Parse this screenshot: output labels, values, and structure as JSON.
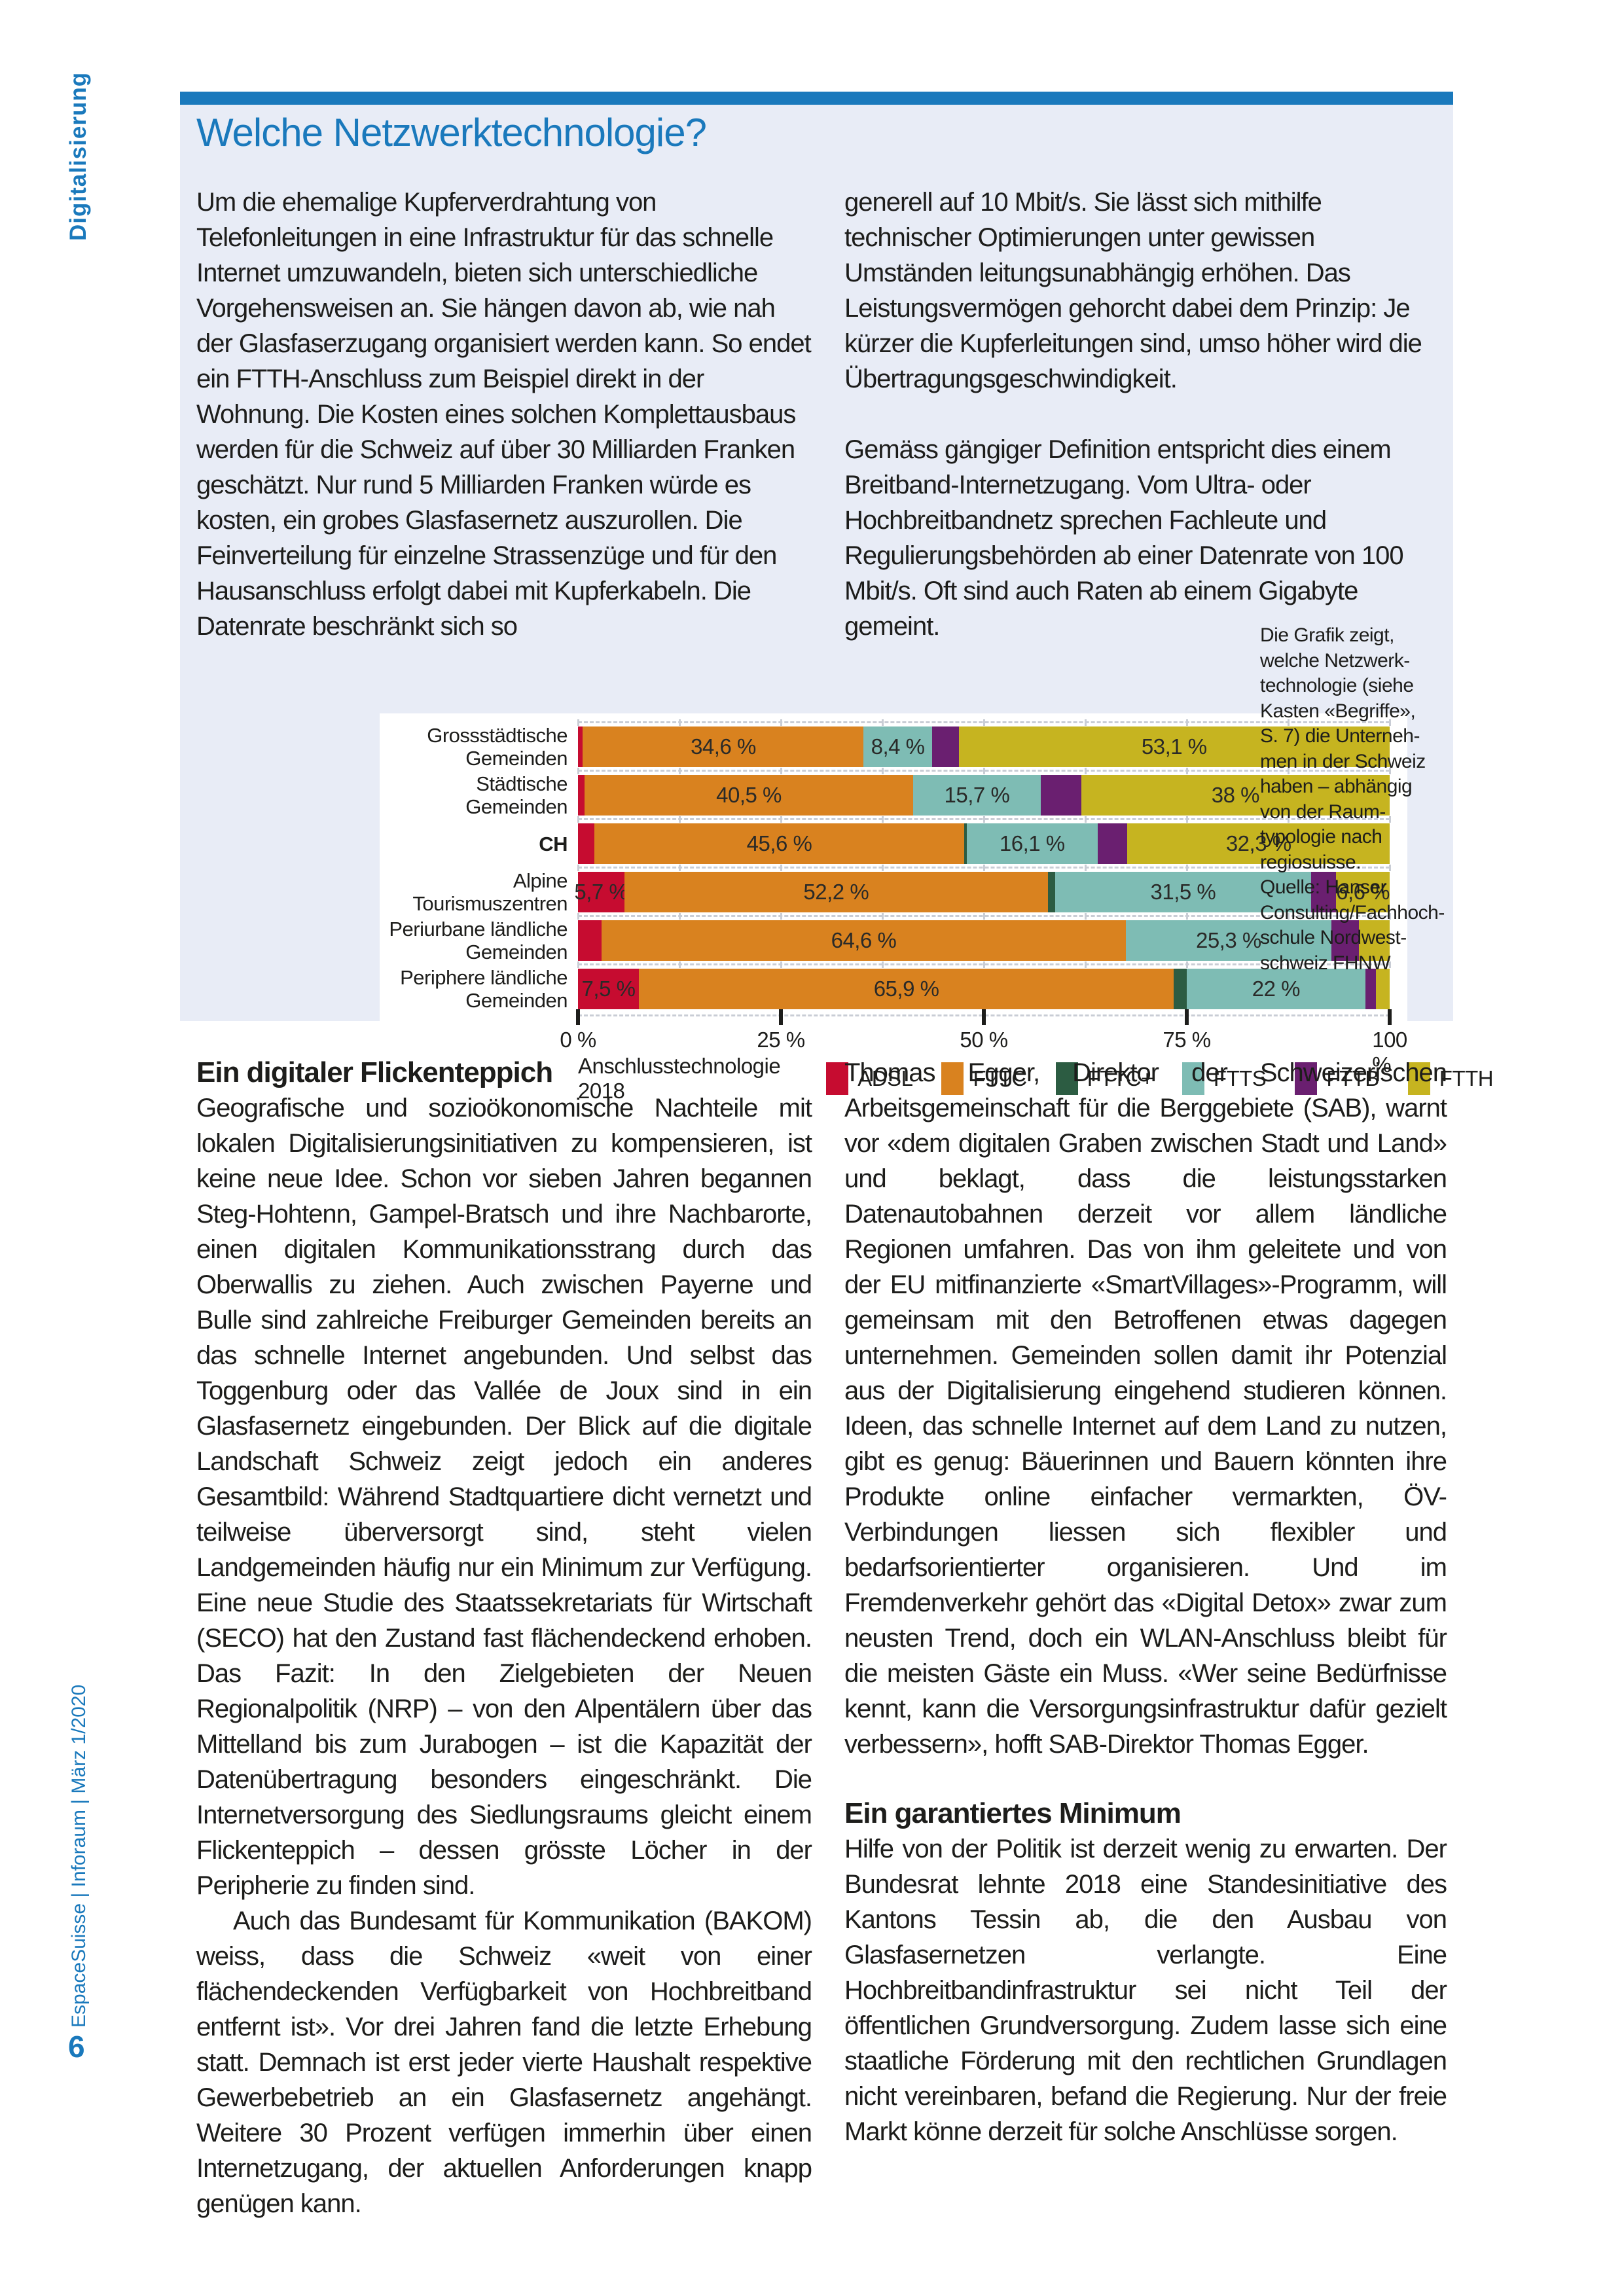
{
  "masthead": {
    "section_label": "Digitalisierung",
    "footer": "EspaceSuisse | Inforaum | März 1/2020",
    "page_number": "6"
  },
  "article": {
    "title": "Welche Netzwerktechnologie?",
    "intro_col1": "Um die ehemalige Kupferverdrahtung von Telefonleitungen in eine Infrastruktur für das schnelle Internet umzuwandeln, bieten sich unterschiedliche Vorgehensweisen an. Sie hängen davon ab, wie nah der Glasfaserzugang organisiert werden kann. So endet ein FTTH-Anschluss zum Beispiel direkt in der Wohnung. Die Kosten eines solchen Komplettausbaus werden für die Schweiz auf über 30 Milliarden Franken geschätzt. Nur rund 5 Milliarden Franken würde es kosten, ein grobes Glasfasernetz auszurollen. Die Feinverteilung für einzelne Strassenzüge und für den Hausanschluss erfolgt dabei mit Kupferkabeln. Die Datenrate beschränkt sich so",
    "intro_col2_p1": "generell auf 10 Mbit/s. Sie lässt sich mithilfe technischer Optimierungen unter gewissen Umständen leitungsunabhängig erhöhen. Das Leistungsvermögen gehorcht dabei dem Prinzip: Je kürzer die Kupferleitungen sind, umso höher wird die Übertragungsgeschwindigkeit.",
    "intro_col2_p2": "Gemäss gängiger Definition entspricht dies einem Breitband-Internetzugang. Vom Ultra- oder Hochbreitbandnetz sprechen Fachleute und Regulierungsbehörden ab einer Datenrate von 100 Mbit/s. Oft sind auch Raten ab einem Gigabyte gemeint.",
    "heading_left": "Ein digitaler Flickenteppich",
    "left_p1": "Geografische und sozioökonomische Nachteile mit lokalen Digitalisierungsinitiativen zu kompensieren, ist keine neue Idee. Schon vor sieben Jahren begannen Steg-Hohtenn, Gampel-Bratsch und ihre Nachbarorte, einen digitalen Kommunikationsstrang durch das Oberwallis zu ziehen. Auch zwischen Payerne und Bulle sind zahlreiche Freiburger Gemeinden bereits an das schnelle Internet angebunden. Und selbst das Toggenburg oder das Vallée de Joux sind in ein Glasfasernetz eingebunden. Der Blick auf die digitale Landschaft Schweiz zeigt jedoch ein anderes Gesamtbild: Während Stadtquartiere dicht vernetzt und teilweise überversorgt sind, steht vielen Landgemeinden häufig nur ein Minimum zur Verfügung. Eine neue Studie des Staatssekretariats für Wirtschaft (SECO) hat den Zustand fast flächendeckend erhoben. Das Fazit: In den Zielgebieten der Neuen Regionalpolitik (NRP) – von den Alpentälern über das Mittelland bis zum Jurabogen – ist die Kapazität der Datenübertragung besonders eingeschränkt. Die Internetversorgung des Siedlungsraums gleicht einem Flickenteppich – dessen grösste Löcher in der Peripherie zu finden sind.",
    "left_p2": "Auch das Bundesamt für Kommunikation (BAKOM) weiss, dass die Schweiz «weit von einer flächendeckenden Verfügbarkeit von Hochbreitband entfernt ist». Vor drei Jahren fand die letzte Erhebung statt. Demnach ist erst jeder vierte Haushalt respektive Gewerbebetrieb an ein Glasfasernetz angehängt. Weitere 30 Prozent verfügen immerhin über einen Internetzugang, der aktuellen Anforderungen knapp genügen kann.",
    "right_p1": "Thomas Egger, Direktor der Schweizerischen Arbeitsgemeinschaft für die Berggebiete (SAB), warnt vor «dem digitalen Graben zwischen Stadt und Land» und beklagt, dass die leistungsstarken Datenautobahnen derzeit vor allem ländliche Regionen umfahren. Das von ihm geleitete und von der EU mitfinanzierte «SmartVillages»-Programm, will gemeinsam mit den Betroffenen etwas dagegen unternehmen. Gemeinden sollen damit ihr Potenzial aus der Digitalisierung eingehend studieren können. Ideen, das schnelle Internet auf dem Land zu nutzen, gibt es genug: Bäuerinnen und Bauern könnten ihre Produkte online einfacher vermarkten, ÖV-Verbindungen liessen sich flexibler und bedarfsorientierter organisieren. Und im Fremdenverkehr gehört das «Digital Detox» zwar zum neusten Trend, doch ein WLAN-Anschluss bleibt für die meisten Gäste ein Muss. «Wer seine Bedürfnisse kennt, kann die Versorgungsinfrastruktur dafür gezielt verbessern», hofft SAB-Direktor Thomas Egger.",
    "heading_right": "Ein garantiertes Minimum",
    "right_p2": "Hilfe von der Politik ist derzeit wenig zu erwarten. Der Bundesrat lehnte 2018 eine Standesinitiative des Kantons Tessin ab, die den Ausbau von Glasfasernetzen verlangte. Eine Hochbreitbandinfrastruktur sei nicht Teil der öffentlichen Grundversorgung. Zudem lasse sich eine staatliche Förderung mit den rechtlichen Grundlagen nicht vereinbaren, befand die Regierung. Nur der freie Markt könne derzeit für solche Anschlüsse sorgen."
  },
  "chart_note": "Die Grafik zeigt,\nwelche Netzwerk-\ntechnologie (siehe\nKasten «Begriffe»,\nS. 7) die Unterneh-\nmen in der Schweiz\nhaben – abhängig\nvon der Raum-\ntypologie nach\nregiosuisse.\nQuelle: Hanser\nConsulting/Fachhoch-\nschule Nordwest-\nschweiz FHNW",
  "chart_data": {
    "type": "bar",
    "orientation": "horizontal-stacked",
    "legend_title": "Anschlusstechnologie 2018",
    "legend": [
      "ADSL",
      "FTTC",
      "FTTC+",
      "FTTS",
      "FTTB",
      "FTTH"
    ],
    "legend_position": "bottom",
    "grid": "dashed-horizontal",
    "xlim": [
      0,
      100
    ],
    "x_ticks": [
      "0 %",
      "25 %",
      "50 %",
      "75 %",
      "100 %"
    ],
    "x_tick_values": [
      0,
      25,
      50,
      75,
      100
    ],
    "colors": {
      "ADSL": "#c60c30",
      "FTTC": "#d9821f",
      "FTTC+": "#2c5c42",
      "FTTS": "#7ebcb4",
      "FTTB": "#6a1f70",
      "FTTH": "#c6b420"
    },
    "categories": [
      "Grossstädtische Gemeinden",
      "Städtische Gemeinden",
      "CH",
      "Alpine Tourismuszentren",
      "Periurbane ländliche Gemeinden",
      "Periphere ländliche Gemeinden"
    ],
    "rows": [
      {
        "label_lines": "Grossstädtische\nGemeinden",
        "bold": false,
        "segments": [
          {
            "tech": "ADSL",
            "value": 0.6,
            "label": ""
          },
          {
            "tech": "FTTC",
            "value": 34.6,
            "label": "34,6 %"
          },
          {
            "tech": "FTTS",
            "value": 8.4,
            "label": "8,4 %"
          },
          {
            "tech": "FTTB",
            "value": 3.3,
            "label": ""
          },
          {
            "tech": "FTTH",
            "value": 53.1,
            "label": "53,1 %"
          }
        ]
      },
      {
        "label_lines": "Städtische Gemeinden",
        "bold": false,
        "segments": [
          {
            "tech": "ADSL",
            "value": 0.8,
            "label": ""
          },
          {
            "tech": "FTTC",
            "value": 40.5,
            "label": "40,5 %"
          },
          {
            "tech": "FTTS",
            "value": 15.7,
            "label": "15,7 %"
          },
          {
            "tech": "FTTB",
            "value": 5.0,
            "label": ""
          },
          {
            "tech": "FTTH",
            "value": 38.0,
            "label": "38 %"
          }
        ]
      },
      {
        "label_lines": "CH",
        "bold": true,
        "segments": [
          {
            "tech": "ADSL",
            "value": 2.0,
            "label": ""
          },
          {
            "tech": "FTTC",
            "value": 45.6,
            "label": "45,6 %"
          },
          {
            "tech": "FTTC+",
            "value": 0.3,
            "label": ""
          },
          {
            "tech": "FTTS",
            "value": 16.1,
            "label": "16,1 %"
          },
          {
            "tech": "FTTB",
            "value": 3.7,
            "label": ""
          },
          {
            "tech": "FTTH",
            "value": 32.3,
            "label": "32,3 %"
          }
        ]
      },
      {
        "label_lines": "Alpine\nTourismuszentren",
        "bold": false,
        "segments": [
          {
            "tech": "ADSL",
            "value": 5.7,
            "label": "5,7 %"
          },
          {
            "tech": "FTTC",
            "value": 52.2,
            "label": "52,2 %"
          },
          {
            "tech": "FTTC+",
            "value": 0.9,
            "label": ""
          },
          {
            "tech": "FTTS",
            "value": 31.5,
            "label": "31,5 %"
          },
          {
            "tech": "FTTB",
            "value": 3.1,
            "label": ""
          },
          {
            "tech": "FTTH",
            "value": 6.6,
            "label": "6,6 %"
          }
        ]
      },
      {
        "label_lines": "Periurbane ländliche\nGemeinden",
        "bold": false,
        "segments": [
          {
            "tech": "ADSL",
            "value": 2.9,
            "label": ""
          },
          {
            "tech": "FTTC",
            "value": 64.6,
            "label": "64,6 %"
          },
          {
            "tech": "FTTS",
            "value": 25.3,
            "label": "25,3 %"
          },
          {
            "tech": "FTTB",
            "value": 3.4,
            "label": ""
          },
          {
            "tech": "FTTH",
            "value": 3.8,
            "label": ""
          }
        ]
      },
      {
        "label_lines": "Periphere ländliche\nGemeinden",
        "bold": false,
        "segments": [
          {
            "tech": "ADSL",
            "value": 7.5,
            "label": "7,5 %"
          },
          {
            "tech": "FTTC",
            "value": 65.9,
            "label": "65,9 %"
          },
          {
            "tech": "FTTC+",
            "value": 1.6,
            "label": ""
          },
          {
            "tech": "FTTS",
            "value": 22.0,
            "label": "22 %"
          },
          {
            "tech": "FTTB",
            "value": 1.3,
            "label": ""
          },
          {
            "tech": "FTTH",
            "value": 1.7,
            "label": ""
          }
        ]
      }
    ]
  }
}
